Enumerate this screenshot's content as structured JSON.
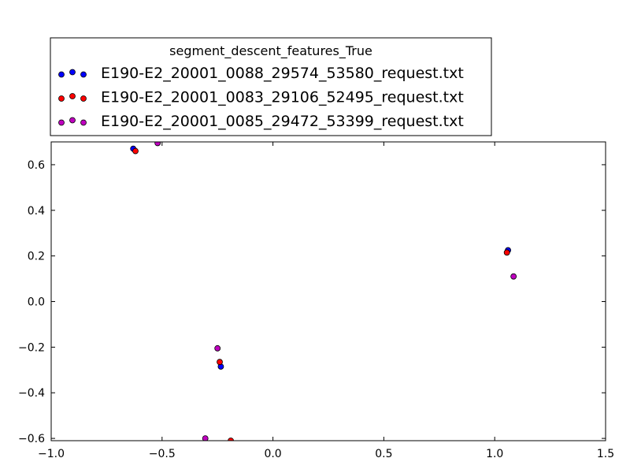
{
  "chart_data": {
    "type": "scatter",
    "title": "",
    "xlabel": "",
    "ylabel": "",
    "xlim": [
      -1.0,
      1.5
    ],
    "ylim": [
      -0.61,
      0.7
    ],
    "xticks": [
      -1.0,
      -0.5,
      0.0,
      0.5,
      1.0,
      1.5
    ],
    "xtick_labels": [
      "−1.0",
      "−0.5",
      "0.0",
      "0.5",
      "1.0",
      "1.5"
    ],
    "yticks": [
      -0.6,
      -0.4,
      -0.2,
      0.0,
      0.2,
      0.4,
      0.6
    ],
    "ytick_labels": [
      "−0.6",
      "−0.4",
      "−0.2",
      "0.0",
      "0.2",
      "0.4",
      "0.6"
    ],
    "grid": false,
    "legend": {
      "title": "segment_descent_features_True",
      "placement": "above plot, left"
    },
    "series": [
      {
        "name": "E190-E2_20001_0088_29574_53580_request.txt",
        "color": "#0000ff",
        "points": [
          {
            "x": -0.63,
            "y": 0.67
          },
          {
            "x": 1.06,
            "y": 0.225
          },
          {
            "x": -0.235,
            "y": -0.285
          }
        ]
      },
      {
        "name": "E190-E2_20001_0083_29106_52495_request.txt",
        "color": "#ff0000",
        "points": [
          {
            "x": -0.62,
            "y": 0.66
          },
          {
            "x": 1.055,
            "y": 0.215
          },
          {
            "x": -0.24,
            "y": -0.265
          },
          {
            "x": -0.19,
            "y": -0.61
          }
        ]
      },
      {
        "name": "E190-E2_20001_0085_29472_53399_request.txt",
        "color": "#bf00bf",
        "points": [
          {
            "x": -0.52,
            "y": 0.695
          },
          {
            "x": 1.085,
            "y": 0.11
          },
          {
            "x": -0.25,
            "y": -0.205
          },
          {
            "x": -0.305,
            "y": -0.6
          }
        ]
      }
    ]
  }
}
